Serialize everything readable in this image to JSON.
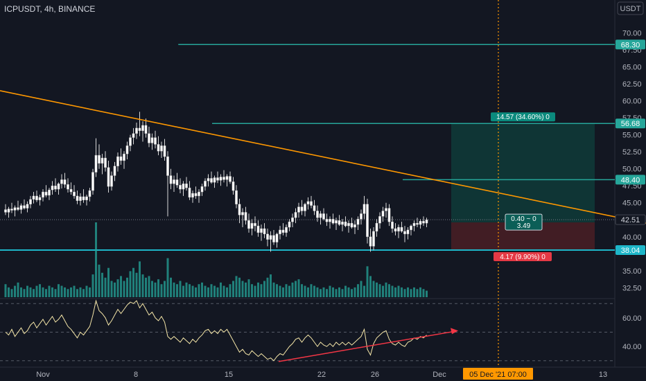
{
  "header": {
    "symbol": "ICPUSDT, 4h, BINANCE",
    "currency": "USDT"
  },
  "colors": {
    "background": "#131722",
    "candle_up": "#ffffff",
    "candle_down": "#ffffff",
    "volume": "#26a69a",
    "trendline": "#ff9800",
    "level_line": "#26a69a",
    "support_line": "#1eb6c9",
    "rsi_line": "#f5e6a8",
    "divergence_arrow": "#f23645",
    "profit_zone": "#0f3b38",
    "loss_zone": "#4a1f24",
    "crosshair": "#ff9800"
  },
  "chart_data": {
    "type": "candlestick",
    "symbol": "ICPUSDT",
    "timeframe": "4h",
    "exchange": "BINANCE",
    "price_axis": {
      "ticks": [
        70,
        67.5,
        65,
        62.5,
        60,
        57.5,
        55,
        52.5,
        50,
        47.5,
        45,
        40,
        35,
        32.5
      ],
      "tick_labels": [
        "70.00",
        "67.50",
        "65.00",
        "62.50",
        "60.00",
        "57.50",
        "55.00",
        "52.50",
        "50.00",
        "47.50",
        "45.00",
        "40.00",
        "35.00",
        "32.50"
      ],
      "range": [
        31,
        72
      ]
    },
    "time_axis": {
      "labels": [
        "Nov",
        "8",
        "15",
        "22",
        "26",
        "Dec",
        "13"
      ],
      "crosshair_label": "05 Dec '21   07:00"
    },
    "candles": [
      [
        44.0,
        44.8,
        43.2,
        43.6
      ],
      [
        43.6,
        44.4,
        42.8,
        44.1
      ],
      [
        44.1,
        45.0,
        43.5,
        43.9
      ],
      [
        43.9,
        44.6,
        43.0,
        44.3
      ],
      [
        44.3,
        45.3,
        43.8,
        44.0
      ],
      [
        44.0,
        44.9,
        43.4,
        44.6
      ],
      [
        44.6,
        45.5,
        44.0,
        44.2
      ],
      [
        44.2,
        45.2,
        43.6,
        44.8
      ],
      [
        44.8,
        46.0,
        44.2,
        45.5
      ],
      [
        45.5,
        46.6,
        44.9,
        46.0
      ],
      [
        46.0,
        46.8,
        45.1,
        45.4
      ],
      [
        45.4,
        46.2,
        44.6,
        45.8
      ],
      [
        45.8,
        47.0,
        45.2,
        46.6
      ],
      [
        46.6,
        47.6,
        45.8,
        46.1
      ],
      [
        46.1,
        47.2,
        45.4,
        46.9
      ],
      [
        46.9,
        48.2,
        46.2,
        47.5
      ],
      [
        47.5,
        48.6,
        46.6,
        47.0
      ],
      [
        47.0,
        48.0,
        46.2,
        47.8
      ],
      [
        47.8,
        49.2,
        47.1,
        48.4
      ],
      [
        48.4,
        49.4,
        47.2,
        47.7
      ],
      [
        47.7,
        48.6,
        46.5,
        47.0
      ],
      [
        47.0,
        48.0,
        46.2,
        46.6
      ],
      [
        46.6,
        47.6,
        45.6,
        46.0
      ],
      [
        46.0,
        46.8,
        44.8,
        45.3
      ],
      [
        45.3,
        46.4,
        44.6,
        45.9
      ],
      [
        45.9,
        47.0,
        45.0,
        45.4
      ],
      [
        45.4,
        46.2,
        44.6,
        45.9
      ],
      [
        45.9,
        47.2,
        45.2,
        46.8
      ],
      [
        46.8,
        50.0,
        46.2,
        49.5
      ],
      [
        49.5,
        54.5,
        48.8,
        52.0
      ],
      [
        52.0,
        53.6,
        50.0,
        50.8
      ],
      [
        50.8,
        52.2,
        49.2,
        51.6
      ],
      [
        51.6,
        52.6,
        49.6,
        50.2
      ],
      [
        50.2,
        51.2,
        46.5,
        47.4
      ],
      [
        47.4,
        49.6,
        46.8,
        49.0
      ],
      [
        49.0,
        51.0,
        48.2,
        50.4
      ],
      [
        50.4,
        52.4,
        49.6,
        51.8
      ],
      [
        51.8,
        53.0,
        50.6,
        51.2
      ],
      [
        51.2,
        52.6,
        50.0,
        52.2
      ],
      [
        52.2,
        54.0,
        51.4,
        53.4
      ],
      [
        53.4,
        55.0,
        52.6,
        54.6
      ],
      [
        54.6,
        56.0,
        53.6,
        55.2
      ],
      [
        55.2,
        56.8,
        54.4,
        56.0
      ],
      [
        56.0,
        58.4,
        54.8,
        55.6
      ],
      [
        55.6,
        57.0,
        54.0,
        56.4
      ],
      [
        56.4,
        57.4,
        54.6,
        55.2
      ],
      [
        55.2,
        56.2,
        53.2,
        53.8
      ],
      [
        53.8,
        55.2,
        52.8,
        54.6
      ],
      [
        54.6,
        55.6,
        53.0,
        53.6
      ],
      [
        53.6,
        54.8,
        52.0,
        52.6
      ],
      [
        52.6,
        54.0,
        51.6,
        53.4
      ],
      [
        53.4,
        54.4,
        51.2,
        51.8
      ],
      [
        51.8,
        52.6,
        43.0,
        49.0
      ],
      [
        49.0,
        50.0,
        47.0,
        47.8
      ],
      [
        47.8,
        49.0,
        46.6,
        48.4
      ],
      [
        48.4,
        49.4,
        47.2,
        47.6
      ],
      [
        47.6,
        48.6,
        46.4,
        47.0
      ],
      [
        47.0,
        48.2,
        46.0,
        47.8
      ],
      [
        47.8,
        48.8,
        46.8,
        47.2
      ],
      [
        47.2,
        48.2,
        45.4,
        45.8
      ],
      [
        45.8,
        46.8,
        45.0,
        46.4
      ],
      [
        46.4,
        47.4,
        45.6,
        46.0
      ],
      [
        46.0,
        47.0,
        45.0,
        46.6
      ],
      [
        46.6,
        47.8,
        46.0,
        47.4
      ],
      [
        47.4,
        48.6,
        46.8,
        48.2
      ],
      [
        48.2,
        49.2,
        47.4,
        48.6
      ],
      [
        48.6,
        49.6,
        47.8,
        48.0
      ],
      [
        48.0,
        49.0,
        47.2,
        48.7
      ],
      [
        48.7,
        49.6,
        47.9,
        48.3
      ],
      [
        48.3,
        49.2,
        47.5,
        48.8
      ],
      [
        48.8,
        49.8,
        48.0,
        48.4
      ],
      [
        48.4,
        49.2,
        47.4,
        48.9
      ],
      [
        48.9,
        49.6,
        47.8,
        48.1
      ],
      [
        48.1,
        48.8,
        46.2,
        46.8
      ],
      [
        46.8,
        47.6,
        44.2,
        44.8
      ],
      [
        44.8,
        45.6,
        42.0,
        43.2
      ],
      [
        43.2,
        44.2,
        41.4,
        43.6
      ],
      [
        43.6,
        44.4,
        41.8,
        42.4
      ],
      [
        42.4,
        43.4,
        40.6,
        41.2
      ],
      [
        41.2,
        42.6,
        40.2,
        42.0
      ],
      [
        42.0,
        43.0,
        40.8,
        41.6
      ],
      [
        41.6,
        42.4,
        40.0,
        40.6
      ],
      [
        40.6,
        41.8,
        39.4,
        41.2
      ],
      [
        41.2,
        42.0,
        39.8,
        40.4
      ],
      [
        40.4,
        41.2,
        38.6,
        39.6
      ],
      [
        39.6,
        40.8,
        37.8,
        40.2
      ],
      [
        40.2,
        41.0,
        38.8,
        39.2
      ],
      [
        39.2,
        40.6,
        38.4,
        40.4
      ],
      [
        40.4,
        41.6,
        39.6,
        41.0
      ],
      [
        41.0,
        42.0,
        40.2,
        40.6
      ],
      [
        40.6,
        41.8,
        40.0,
        41.4
      ],
      [
        41.4,
        42.6,
        40.8,
        42.2
      ],
      [
        42.2,
        43.4,
        41.4,
        42.8
      ],
      [
        42.8,
        44.2,
        42.0,
        43.6
      ],
      [
        43.6,
        45.0,
        42.8,
        44.4
      ],
      [
        44.4,
        45.4,
        43.2,
        43.8
      ],
      [
        43.8,
        45.0,
        43.0,
        44.8
      ],
      [
        44.8,
        45.8,
        44.0,
        45.2
      ],
      [
        45.2,
        46.0,
        44.2,
        44.6
      ],
      [
        44.6,
        45.4,
        43.2,
        43.8
      ],
      [
        43.8,
        44.6,
        42.2,
        42.8
      ],
      [
        42.8,
        43.8,
        41.8,
        43.4
      ],
      [
        43.4,
        44.2,
        42.4,
        42.6
      ],
      [
        42.6,
        43.4,
        41.6,
        42.2
      ],
      [
        42.2,
        43.0,
        41.2,
        42.6
      ],
      [
        42.6,
        43.4,
        41.8,
        42.0
      ],
      [
        42.0,
        42.8,
        41.0,
        42.4
      ],
      [
        42.4,
        43.2,
        41.6,
        41.8
      ],
      [
        41.8,
        42.6,
        40.8,
        42.2
      ],
      [
        42.2,
        43.0,
        41.4,
        41.6
      ],
      [
        41.6,
        42.4,
        40.6,
        42.0
      ],
      [
        42.0,
        42.8,
        41.2,
        41.4
      ],
      [
        41.4,
        42.4,
        40.4,
        41.8
      ],
      [
        41.8,
        43.0,
        41.0,
        42.6
      ],
      [
        42.6,
        44.0,
        41.8,
        43.4
      ],
      [
        43.4,
        46.0,
        42.6,
        44.8
      ],
      [
        44.8,
        45.6,
        39.0,
        40.0
      ],
      [
        40.0,
        41.2,
        37.8,
        38.6
      ],
      [
        38.6,
        41.4,
        38.0,
        40.8
      ],
      [
        40.8,
        42.6,
        40.0,
        42.0
      ],
      [
        42.0,
        43.6,
        41.2,
        43.0
      ],
      [
        43.0,
        44.4,
        42.2,
        43.8
      ],
      [
        43.8,
        45.0,
        42.8,
        44.2
      ],
      [
        44.2,
        44.8,
        41.6,
        42.2
      ],
      [
        42.2,
        43.0,
        40.6,
        41.2
      ],
      [
        41.2,
        42.0,
        40.2,
        40.8
      ],
      [
        40.8,
        41.8,
        39.8,
        41.4
      ],
      [
        41.4,
        42.2,
        40.6,
        40.8
      ],
      [
        40.8,
        41.6,
        39.2,
        40.4
      ],
      [
        40.4,
        41.4,
        39.6,
        41.0
      ],
      [
        41.0,
        41.8,
        40.2,
        41.6
      ],
      [
        41.6,
        42.4,
        40.8,
        42.0
      ],
      [
        42.0,
        42.8,
        41.4,
        41.8
      ],
      [
        41.8,
        42.6,
        41.2,
        42.3
      ],
      [
        42.3,
        43.0,
        41.6,
        42.0
      ],
      [
        42.0,
        42.8,
        41.4,
        42.51
      ]
    ],
    "current_price": 42.51,
    "price_labels": [
      {
        "value": 68.3,
        "text": "68.30",
        "kind": "level"
      },
      {
        "value": 56.68,
        "text": "56.68",
        "kind": "level"
      },
      {
        "value": 48.4,
        "text": "48.40",
        "kind": "level"
      },
      {
        "value": 42.51,
        "text": "42.51",
        "kind": "current"
      },
      {
        "value": 38.04,
        "text": "38.04",
        "kind": "support"
      }
    ],
    "horizontal_lines": [
      {
        "value": 68.3,
        "start_fraction": 0.29
      },
      {
        "value": 56.68,
        "start_fraction": 0.345
      },
      {
        "value": 48.4,
        "start_fraction": 0.655
      },
      {
        "value": 38.04,
        "start_fraction": 0.0
      }
    ],
    "trendline": {
      "from": [
        0.0,
        61.5
      ],
      "to": [
        1.0,
        42.0
      ]
    },
    "position": {
      "entry": 42.11,
      "target": 56.68,
      "stop": 37.94,
      "profit_label": "14.57 (34.60%) 0",
      "loss_label": "4.17 (9.90%) 0",
      "ratio_label_line1": "0.40 ~ 0",
      "ratio_label_line2": "3.49"
    },
    "volume": [
      8,
      6,
      5,
      7,
      9,
      6,
      5,
      7,
      6,
      5,
      7,
      8,
      6,
      5,
      7,
      6,
      5,
      8,
      7,
      6,
      5,
      6,
      7,
      5,
      6,
      5,
      7,
      6,
      14,
      46,
      20,
      15,
      12,
      18,
      10,
      9,
      11,
      13,
      10,
      12,
      16,
      18,
      15,
      22,
      14,
      12,
      13,
      10,
      9,
      11,
      8,
      10,
      24,
      12,
      9,
      8,
      10,
      7,
      9,
      8,
      7,
      6,
      8,
      9,
      7,
      6,
      8,
      7,
      6,
      9,
      7,
      6,
      8,
      10,
      13,
      12,
      10,
      9,
      11,
      8,
      7,
      9,
      8,
      10,
      12,
      14,
      9,
      8,
      7,
      6,
      8,
      7,
      9,
      10,
      11,
      8,
      7,
      6,
      8,
      7,
      6,
      5,
      6,
      5,
      7,
      6,
      5,
      6,
      5,
      7,
      6,
      5,
      6,
      8,
      10,
      7,
      19,
      13,
      10,
      9,
      8,
      7,
      9,
      8,
      7,
      6,
      7,
      6,
      5,
      6,
      5,
      6,
      5,
      6,
      5,
      4
    ],
    "rsi": {
      "ticks": [
        60,
        40
      ],
      "tick_labels": [
        "60.00",
        "40.00"
      ],
      "levels": [
        70,
        50,
        30
      ],
      "range": [
        27,
        73
      ],
      "values": [
        50,
        48,
        52,
        47,
        50,
        53,
        49,
        51,
        55,
        57,
        53,
        56,
        59,
        55,
        58,
        61,
        57,
        59,
        62,
        58,
        54,
        52,
        49,
        46,
        50,
        48,
        51,
        54,
        62,
        72,
        65,
        63,
        60,
        55,
        58,
        62,
        66,
        63,
        66,
        69,
        71,
        70,
        72,
        67,
        70,
        66,
        62,
        64,
        60,
        58,
        61,
        57,
        47,
        45,
        47,
        45,
        43,
        46,
        44,
        42,
        45,
        43,
        46,
        48,
        51,
        52,
        49,
        51,
        49,
        52,
        50,
        52,
        48,
        44,
        40,
        36,
        38,
        35,
        34,
        37,
        35,
        33,
        35,
        33,
        31,
        32,
        30,
        33,
        35,
        34,
        37,
        40,
        42,
        45,
        46,
        43,
        46,
        48,
        46,
        43,
        40,
        43,
        41,
        40,
        42,
        40,
        43,
        41,
        43,
        41,
        43,
        41,
        43,
        45,
        47,
        52,
        38,
        34,
        42,
        46,
        48,
        50,
        51,
        45,
        42,
        41,
        43,
        41,
        40,
        43,
        44,
        46,
        45,
        47,
        46,
        48
      ]
    }
  }
}
